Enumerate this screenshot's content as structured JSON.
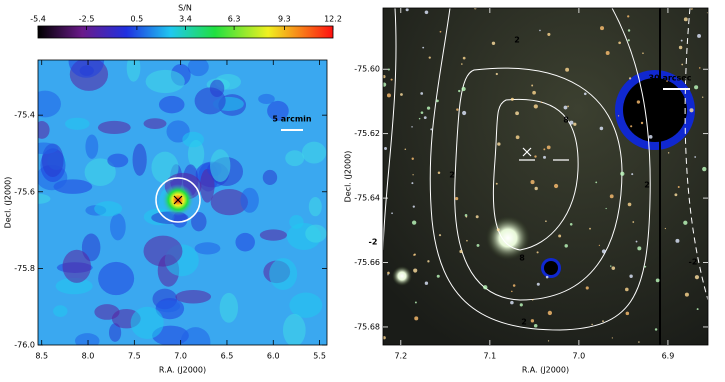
{
  "chart_data": [
    {
      "type": "heatmap",
      "x_label": "R.A. (J2000)",
      "y_label": "Decl. (J2000)",
      "xlim": [
        8.54,
        5.42
      ],
      "ylim": [
        -76.0,
        -75.256
      ],
      "xticks": [
        8.5,
        {
          "value": 8,
          "label": "8.0"
        },
        7.5,
        {
          "value": 7,
          "label": "7.0"
        },
        6.5,
        {
          "value": 6,
          "label": "6.0"
        },
        5.5
      ],
      "yticks": [
        {
          "value": -76,
          "label": "-76.0"
        },
        -75.8,
        -75.6,
        -75.4
      ],
      "colorbar": {
        "label": "S/N",
        "lim": [
          -5.4,
          12.2
        ],
        "ticks": [
          -5.4,
          -2.5,
          0.5,
          3.4,
          6.3,
          9.3,
          12.2
        ]
      },
      "annotations": [
        "5 arcmin"
      ]
    },
    {
      "type": "image",
      "x_label": "R.A. (J2000)",
      "y_label": "Decl. (J2000)",
      "xlim": [
        7.22,
        6.855
      ],
      "ylim": [
        -75.6856,
        -75.581
      ],
      "xticks": [
        7.2,
        7.1,
        {
          "value": 7,
          "label": "7.0"
        },
        6.9
      ],
      "yticks": [
        {
          "value": -75.68,
          "label": "-75.68"
        },
        {
          "value": -75.66,
          "label": "-75.66"
        },
        {
          "value": -75.64,
          "label": "-75.64"
        },
        {
          "value": -75.62,
          "label": "-75.62"
        },
        {
          "value": -75.6,
          "label": "-75.60"
        }
      ],
      "annotations": [
        "30 arcsec"
      ],
      "contour_labels": [
        "2",
        "8",
        "2",
        "2",
        "-2",
        "-2",
        "8",
        "2"
      ]
    }
  ]
}
